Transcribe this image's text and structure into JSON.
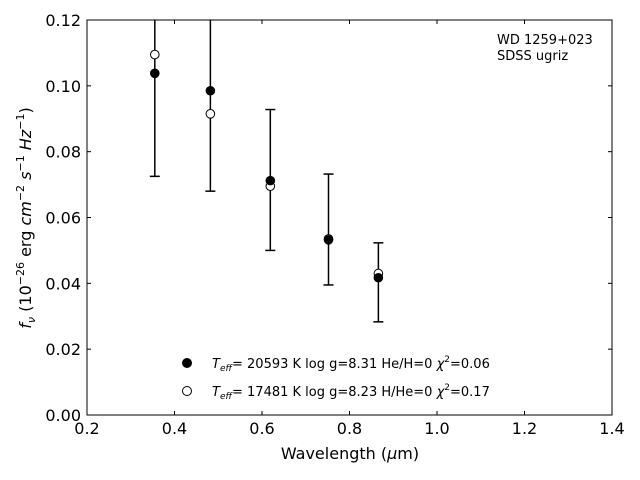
{
  "chart_data": {
    "type": "scatter",
    "xlabel": "Wavelength (μm)",
    "ylabel": "f_ν (10^-26 erg cm^-2 s^-1 Hz^-1)",
    "xlim": [
      0.2,
      1.4
    ],
    "ylim": [
      0.0,
      0.12
    ],
    "xticks": [
      "0.2",
      "0.4",
      "0.6",
      "0.8",
      "1.0",
      "1.2",
      "1.4"
    ],
    "yticks": [
      "0.00",
      "0.02",
      "0.04",
      "0.06",
      "0.08",
      "0.10",
      "0.12"
    ],
    "annotation": [
      "WD 1259+023",
      "SDSS ugriz"
    ],
    "legend_position": "lower-center",
    "observed": {
      "x": [
        0.355,
        0.482,
        0.619,
        0.752,
        0.866
      ],
      "y": [
        0.1095,
        0.0915,
        0.0695,
        0.0535,
        0.043
      ],
      "yerr_low": [
        0.0725,
        0.068,
        0.05,
        0.0395,
        0.0283
      ],
      "yerr_high": [
        0.1235,
        0.1235,
        0.0928,
        0.0732,
        0.0523
      ]
    },
    "series": [
      {
        "name": "T_eff= 20593 K  log g=8.31  He/H=0  χ²=0.06",
        "marker": "filled-circle",
        "color": "#000000",
        "x": [
          0.355,
          0.482,
          0.619,
          0.752,
          0.866
        ],
        "y": [
          0.1038,
          0.0985,
          0.0712,
          0.0532,
          0.0417
        ]
      },
      {
        "name": "T_eff= 17481 K  log g=8.23  H/He=0  χ²=0.17",
        "marker": "open-circle",
        "color": "#000000",
        "x": [
          0.355,
          0.482,
          0.619,
          0.752,
          0.866
        ],
        "y": [
          0.1095,
          0.0915,
          0.0695,
          0.0535,
          0.043
        ]
      }
    ]
  }
}
